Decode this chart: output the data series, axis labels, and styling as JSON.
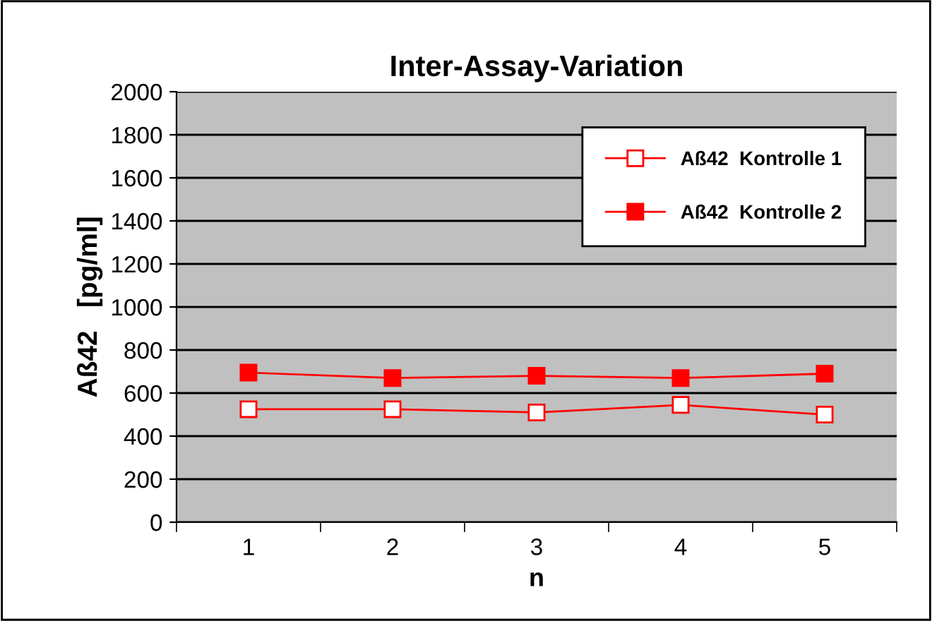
{
  "chart_data": {
    "type": "line",
    "title": "Inter-Assay-Variation",
    "xlabel": "n",
    "ylabel": "Aß42   [pg/ml]",
    "categories": [
      "1",
      "2",
      "3",
      "4",
      "5"
    ],
    "series": [
      {
        "name": "Aß42  Kontrolle 1",
        "color": "#ff0000",
        "values": [
          525,
          525,
          510,
          545,
          500
        ]
      },
      {
        "name": "Aß42  Kontrolle 2",
        "color": "#ff0000",
        "values": [
          695,
          670,
          680,
          670,
          690
        ]
      }
    ],
    "ylim": [
      0,
      2000
    ],
    "yticks": [
      0,
      200,
      400,
      600,
      800,
      1000,
      1200,
      1400,
      1600,
      1800,
      2000
    ],
    "grid": "y",
    "legend": "top right",
    "marker": "square",
    "line_style": "solid"
  }
}
